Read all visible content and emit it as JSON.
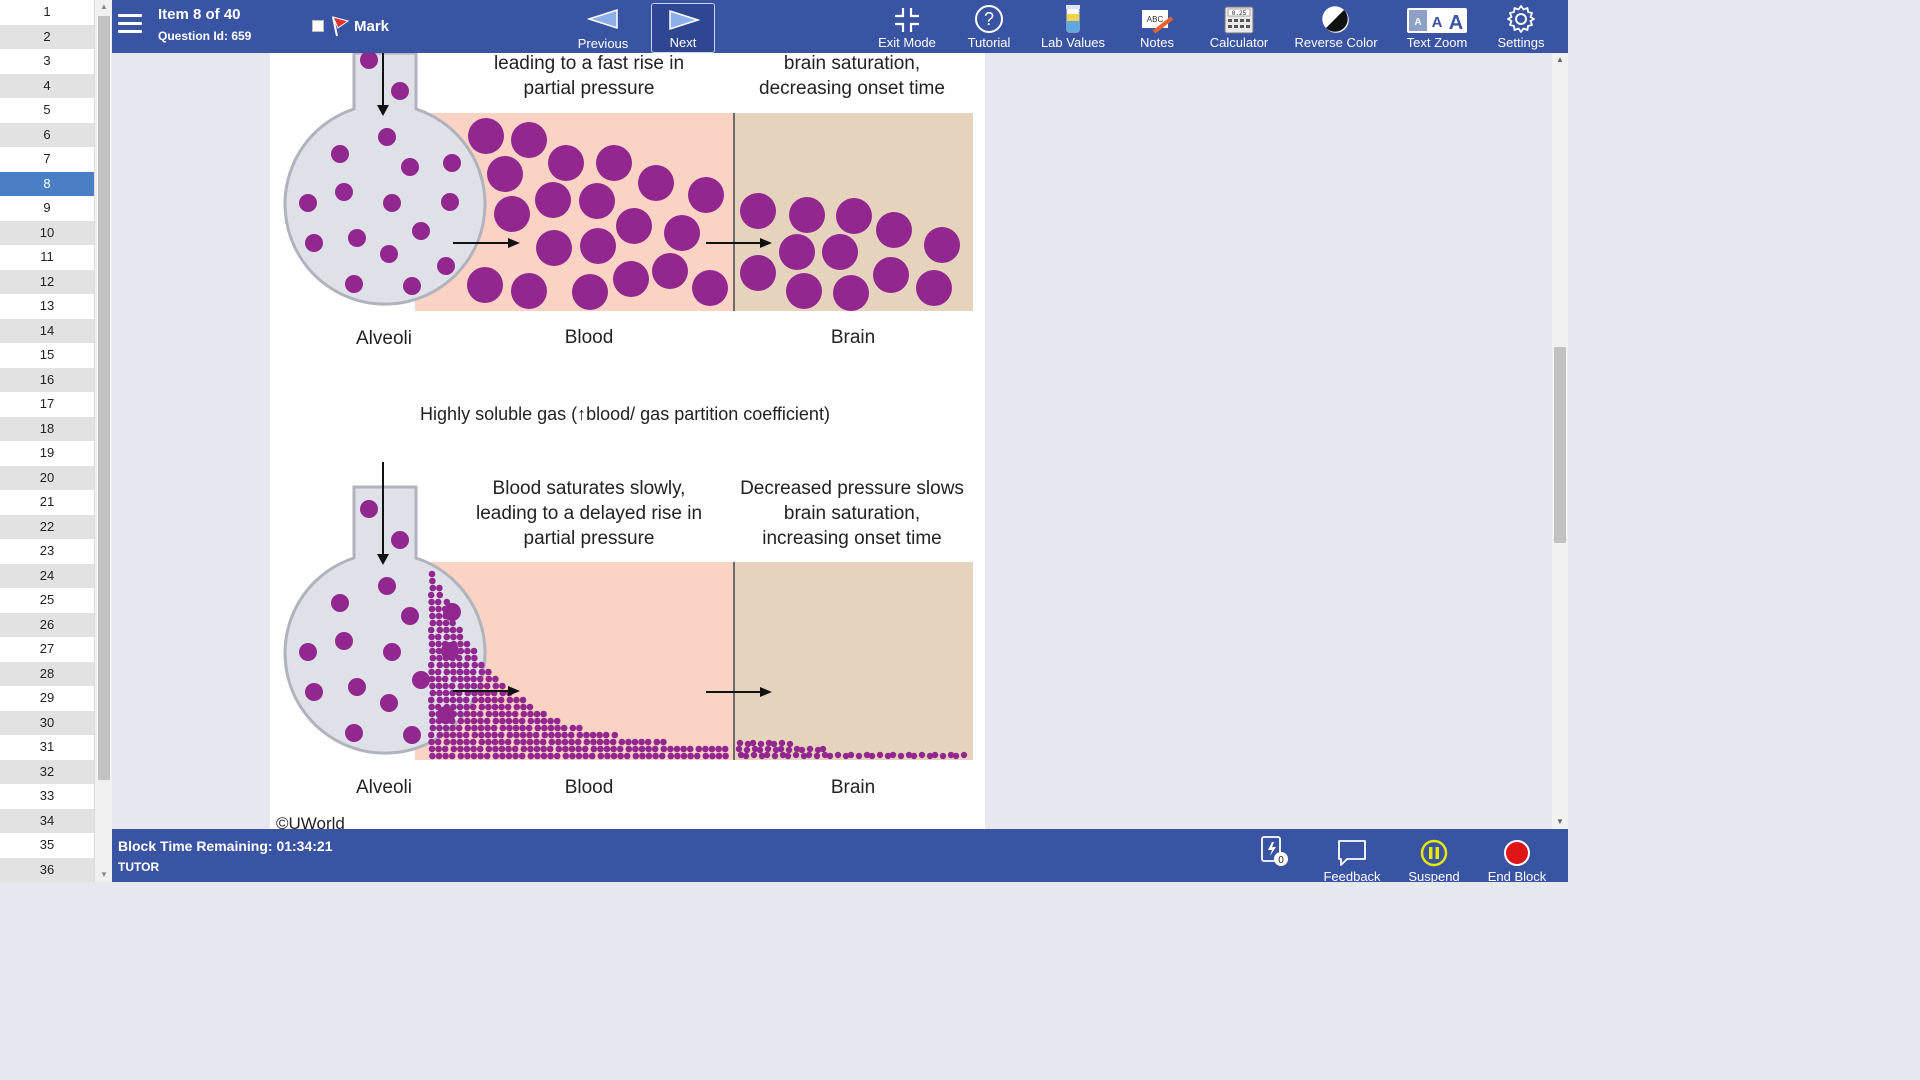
{
  "question_list": {
    "items": [
      "1",
      "2",
      "3",
      "4",
      "5",
      "6",
      "7",
      "8",
      "9",
      "10",
      "11",
      "12",
      "13",
      "14",
      "15",
      "16",
      "17",
      "18",
      "19",
      "20",
      "21",
      "22",
      "23",
      "24",
      "25",
      "26",
      "27",
      "28",
      "29",
      "30",
      "31",
      "32",
      "33",
      "34",
      "35",
      "36"
    ],
    "current": "8"
  },
  "header": {
    "item_title": "Item 8 of 40",
    "question_id": "Question Id: 659",
    "mark_label": "Mark",
    "previous_label": "Previous",
    "next_label": "Next",
    "tools": {
      "exit_mode": "Exit Mode",
      "tutorial": "Tutorial",
      "lab_values": "Lab Values",
      "notes": "Notes",
      "calculator": "Calculator",
      "reverse_color": "Reverse Color",
      "text_zoom": "Text Zoom",
      "settings": "Settings"
    },
    "notes_icon_text": "ABC",
    "calculator_icon_text": "0.25",
    "text_zoom_icon_letters": [
      "A",
      "A",
      "A"
    ]
  },
  "figure": {
    "top_panel": {
      "blood_caption_line1": "leading to a fast rise in",
      "blood_caption_line2": "partial pressure",
      "brain_caption_line1": "brain saturation,",
      "brain_caption_line2": "decreasing onset time",
      "label_alveoli": "Alveoli",
      "label_blood": "Blood",
      "label_brain": "Brain"
    },
    "middle_title": "Highly soluble gas (↑blood/ gas partition coefficient)",
    "bottom_panel": {
      "blood_caption_line1": "Blood saturates slowly,",
      "blood_caption_line2": "leading to a delayed rise in",
      "blood_caption_line3": "partial pressure",
      "brain_caption_line1": "Decreased pressure slows",
      "brain_caption_line2": "brain saturation,",
      "brain_caption_line3": "increasing onset time",
      "label_alveoli": "Alveoli",
      "label_blood": "Blood",
      "label_brain": "Brain"
    },
    "copyright": "©UWorld",
    "colors": {
      "molecule": "#92278f",
      "blood_bg": "#fbd3c4",
      "brain_bg": "#e6d3bd",
      "alveoli_fill": "#dfe1e8",
      "alveoli_stroke": "#b0b3bc"
    }
  },
  "footer": {
    "timer": "Block Time Remaining: 01:34:21",
    "mode": "TUTOR",
    "flashcard_count": "0",
    "feedback_label": "Feedback",
    "suspend_label": "Suspend",
    "end_block_label": "End Block"
  }
}
